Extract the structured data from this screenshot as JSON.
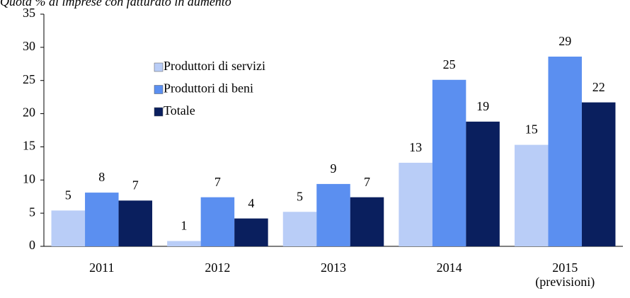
{
  "chart_data": {
    "type": "bar",
    "title": "Quota % di imprese con fatturato in aumento",
    "categories": [
      "2011",
      "2012",
      "2013",
      "2014",
      "2015 (previsioni)"
    ],
    "series": [
      {
        "name": "Produttori di servizi",
        "color": "#b9cdf7",
        "values": [
          5.4,
          0.8,
          5.2,
          12.6,
          15.3
        ],
        "value_labels": [
          "5",
          "1",
          "5",
          "13",
          "15"
        ]
      },
      {
        "name": "Produttori di beni",
        "color": "#5b8ff0",
        "values": [
          8.1,
          7.4,
          9.4,
          25.1,
          28.6
        ],
        "value_labels": [
          "8",
          "7",
          "9",
          "25",
          "29"
        ]
      },
      {
        "name": "Totale",
        "color": "#0a1f5e",
        "values": [
          6.9,
          4.2,
          7.4,
          18.8,
          21.7
        ],
        "value_labels": [
          "7",
          "4",
          "7",
          "19",
          "22"
        ]
      }
    ],
    "ylim": [
      0,
      35
    ],
    "yticks": [
      0,
      5,
      10,
      15,
      20,
      25,
      30,
      35
    ],
    "grid": false
  }
}
